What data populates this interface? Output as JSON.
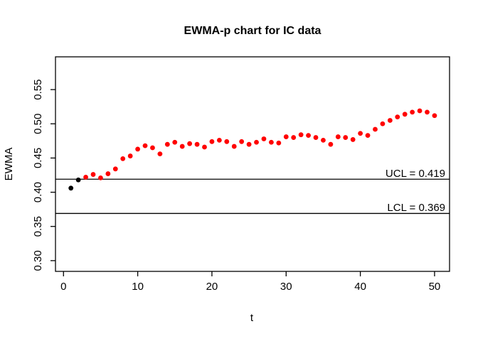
{
  "chart_data": {
    "type": "scatter",
    "title": "EWMA-p chart for IC data",
    "xlabel": "t",
    "ylabel": "EWMA",
    "x": [
      1,
      2,
      3,
      4,
      5,
      6,
      7,
      8,
      9,
      10,
      11,
      12,
      13,
      14,
      15,
      16,
      17,
      18,
      19,
      20,
      21,
      22,
      23,
      24,
      25,
      26,
      27,
      28,
      29,
      30,
      31,
      32,
      33,
      34,
      35,
      36,
      37,
      38,
      39,
      40,
      41,
      42,
      43,
      44,
      45,
      46,
      47,
      48,
      49,
      50
    ],
    "values": [
      0.406,
      0.418,
      0.422,
      0.426,
      0.421,
      0.427,
      0.434,
      0.449,
      0.453,
      0.463,
      0.468,
      0.465,
      0.456,
      0.47,
      0.473,
      0.467,
      0.471,
      0.47,
      0.466,
      0.474,
      0.476,
      0.474,
      0.467,
      0.474,
      0.47,
      0.473,
      0.478,
      0.473,
      0.472,
      0.481,
      0.48,
      0.484,
      0.483,
      0.48,
      0.476,
      0.47,
      0.481,
      0.48,
      0.477,
      0.486,
      0.483,
      0.492,
      0.5,
      0.505,
      0.51,
      0.514,
      0.517,
      0.519,
      0.517,
      0.512
    ],
    "ucl": {
      "label": "UCL = 0.419",
      "value": 0.419
    },
    "lcl": {
      "label": "LCL = 0.369",
      "value": 0.369
    },
    "x_ticks": [
      0,
      10,
      20,
      30,
      40,
      50
    ],
    "y_tick_labels": [
      "0.30",
      "0.35",
      "0.40",
      "0.45",
      "0.50",
      "0.55"
    ],
    "xlim": [
      -1.08,
      52.02
    ],
    "ylim": [
      0.2843,
      0.5979
    ],
    "grid": "off",
    "legend": "none",
    "colors": {
      "in_control_point": "#000000",
      "out_of_control_point": "#ff0000",
      "line": "#000000",
      "background": "#ffffff"
    }
  }
}
